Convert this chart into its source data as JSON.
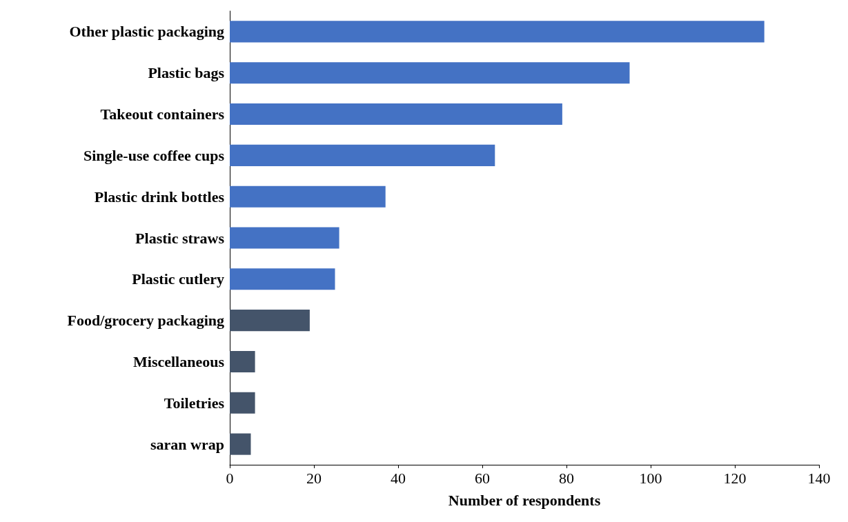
{
  "chart_data": {
    "type": "bar",
    "orientation": "horizontal",
    "xlabel": "Number of respondents",
    "categories": [
      "Other plastic packaging",
      "Plastic bags",
      "Takeout containers",
      "Single-use coffee cups",
      "Plastic drink bottles",
      "Plastic straws",
      "Plastic cutlery",
      "Food/grocery packaging",
      "Miscellaneous",
      "Toiletries",
      "saran wrap"
    ],
    "values": [
      127,
      95,
      79,
      63,
      37,
      26,
      25,
      19,
      6,
      6,
      5
    ],
    "colors": [
      "#4472c4",
      "#4472c4",
      "#4472c4",
      "#4472c4",
      "#4472c4",
      "#4472c4",
      "#4472c4",
      "#44546a",
      "#44546a",
      "#44546a",
      "#44546a"
    ],
    "xlim": [
      0,
      140
    ],
    "xticks": [
      0,
      20,
      40,
      60,
      80,
      100,
      120,
      140
    ],
    "grid": false
  }
}
